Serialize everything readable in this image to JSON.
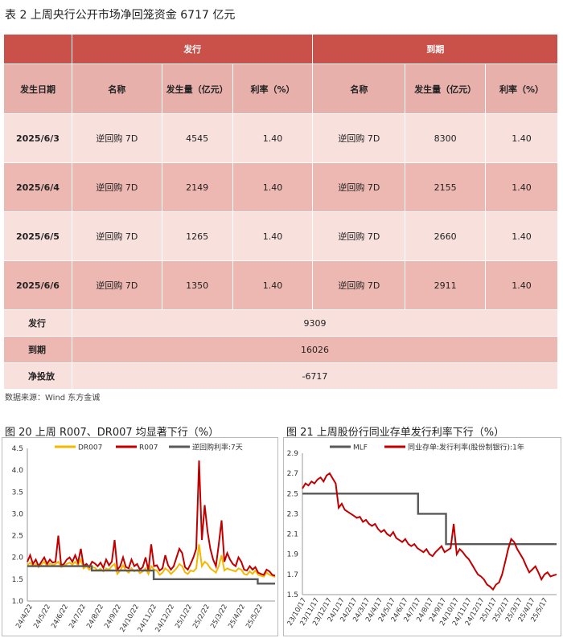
{
  "title": "表 2   上周央行公开市场净回笼资金 6717 亿元",
  "table": {
    "group_headers": [
      "发行",
      "到期"
    ],
    "col_headers": [
      "发生日期",
      "名称",
      "发生量（亿元）",
      "利率（%）",
      "名称",
      "发生量（亿元）",
      "利率（%）"
    ],
    "rows": [
      {
        "date": "2025/6/3",
        "issue_name": "逆回购 7D",
        "issue_amt": "4545",
        "issue_rate": "1.40",
        "mat_name": "逆回购 7D",
        "mat_amt": "8300",
        "mat_rate": "1.40"
      },
      {
        "date": "2025/6/4",
        "issue_name": "逆回购 7D",
        "issue_amt": "2149",
        "issue_rate": "1.40",
        "mat_name": "逆回购 7D",
        "mat_amt": "2155",
        "mat_rate": "1.40"
      },
      {
        "date": "2025/6/5",
        "issue_name": "逆回购 7D",
        "issue_amt": "1265",
        "issue_rate": "1.40",
        "mat_name": "逆回购 7D",
        "mat_amt": "2660",
        "mat_rate": "1.40"
      },
      {
        "date": "2025/6/6",
        "issue_name": "逆回购 7D",
        "issue_amt": "1350",
        "issue_rate": "1.40",
        "mat_name": "逆回购 7D",
        "mat_amt": "2911",
        "mat_rate": "1.40"
      }
    ],
    "summary": [
      {
        "label": "发行",
        "value": "9309"
      },
      {
        "label": "到期",
        "value": "16026"
      },
      {
        "label": "净投放",
        "value": "-6717"
      }
    ]
  },
  "source": "数据来源：Wind 东方金诚",
  "chart_data": [
    {
      "type": "line",
      "title": "图 20  上周 R007、DR007 均显著下行（%）",
      "ylim": [
        1.0,
        4.5
      ],
      "yticks": [
        "4.5",
        "4.0",
        "3.5",
        "3.0",
        "2.5",
        "2.0",
        "1.5",
        "1.0"
      ],
      "x_ticks": [
        "24/4/22",
        "24/5/22",
        "24/6/22",
        "24/7/22",
        "24/8/22",
        "24/9/22",
        "24/10/22",
        "24/11/22",
        "24/12/22",
        "25/1/22",
        "25/2/22",
        "25/3/22",
        "25/4/22",
        "25/5/22"
      ],
      "series": [
        {
          "name": "DR007",
          "color": "#f5b800",
          "values": [
            1.82,
            1.88,
            1.8,
            1.85,
            1.78,
            1.84,
            1.9,
            1.8,
            1.86,
            1.82,
            1.85,
            1.9,
            1.78,
            1.8,
            1.85,
            1.88,
            1.83,
            1.9,
            1.82,
            1.95,
            1.75,
            1.8,
            1.72,
            1.78,
            1.76,
            1.7,
            1.74,
            1.68,
            1.75,
            1.72,
            1.8,
            1.85,
            1.62,
            1.7,
            1.82,
            1.7,
            1.65,
            1.75,
            1.68,
            1.72,
            1.64,
            1.68,
            1.75,
            1.62,
            1.8,
            1.72,
            1.7,
            1.6,
            1.65,
            1.75,
            1.7,
            1.62,
            1.68,
            1.75,
            1.85,
            1.8,
            1.66,
            1.62,
            1.7,
            1.68,
            1.75,
            2.3,
            1.8,
            1.9,
            1.85,
            1.75,
            1.7,
            1.65,
            1.8,
            2.05,
            1.7,
            1.75,
            1.72,
            1.7,
            1.68,
            1.75,
            1.72,
            1.62,
            1.6,
            1.68,
            1.62,
            1.7,
            1.6,
            1.58,
            1.56,
            1.65,
            1.6,
            1.58,
            1.55
          ]
        },
        {
          "name": "R007",
          "color": "#c00000",
          "values": [
            1.9,
            2.05,
            1.85,
            1.95,
            1.8,
            1.9,
            2.0,
            1.85,
            1.95,
            1.88,
            1.9,
            2.5,
            1.82,
            1.85,
            1.95,
            2.0,
            1.9,
            2.05,
            1.88,
            2.2,
            1.8,
            1.85,
            1.78,
            1.9,
            1.86,
            1.8,
            1.88,
            1.76,
            1.95,
            1.82,
            1.9,
            2.4,
            1.72,
            1.8,
            2.0,
            1.78,
            1.75,
            1.95,
            1.8,
            1.85,
            1.72,
            1.78,
            2.0,
            1.7,
            2.3,
            1.8,
            1.82,
            1.7,
            1.75,
            2.05,
            1.82,
            1.72,
            1.8,
            2.0,
            2.2,
            2.1,
            1.78,
            1.72,
            1.85,
            2.0,
            2.2,
            4.22,
            2.4,
            3.2,
            2.6,
            2.2,
            1.95,
            1.8,
            2.3,
            2.85,
            1.9,
            2.1,
            1.95,
            1.85,
            1.8,
            2.0,
            1.9,
            1.72,
            1.7,
            1.8,
            1.72,
            1.78,
            1.65,
            1.62,
            1.6,
            1.72,
            1.68,
            1.6,
            1.58
          ]
        },
        {
          "name": "逆回购利率:7天",
          "color": "#595959",
          "step": [
            [
              0,
              1.8
            ],
            [
              0.26,
              1.7
            ],
            [
              0.51,
              1.5
            ],
            [
              0.93,
              1.4
            ],
            [
              1,
              1.4
            ]
          ]
        }
      ]
    },
    {
      "type": "line",
      "title": "图 21 上周股份行同业存单发行利率下行（%）",
      "ylim": [
        1.5,
        2.9
      ],
      "yticks": [
        "2.9",
        "2.7",
        "2.5",
        "2.3",
        "2.1",
        "1.9",
        "1.7",
        "1.5"
      ],
      "x_ticks": [
        "23/10/17",
        "23/11/17",
        "23/12/17",
        "24/1/17",
        "24/2/17",
        "24/3/17",
        "24/4/17",
        "24/5/17",
        "24/6/17",
        "24/7/17",
        "24/8/17",
        "24/9/17",
        "24/10/17",
        "24/11/17",
        "24/12/17",
        "25/1/17",
        "25/2/17",
        "25/3/17",
        "25/4/17",
        "25/5/17"
      ],
      "series": [
        {
          "name": "MLF",
          "color": "#595959",
          "step": [
            [
              0,
              2.5
            ],
            [
              0.455,
              2.3
            ],
            [
              0.565,
              2.0
            ],
            [
              1,
              2.0
            ]
          ]
        },
        {
          "name": "同业存单:发行利率(股份制银行):1年",
          "color": "#c00000",
          "values": [
            2.55,
            2.6,
            2.58,
            2.62,
            2.6,
            2.64,
            2.66,
            2.62,
            2.68,
            2.7,
            2.65,
            2.6,
            2.36,
            2.4,
            2.34,
            2.32,
            2.3,
            2.28,
            2.26,
            2.27,
            2.22,
            2.24,
            2.2,
            2.18,
            2.2,
            2.15,
            2.12,
            2.14,
            2.1,
            2.08,
            2.12,
            2.06,
            2.04,
            2.02,
            2.05,
            2.0,
            1.98,
            2.0,
            1.96,
            1.94,
            1.92,
            1.95,
            1.9,
            1.88,
            1.92,
            1.95,
            1.98,
            1.92,
            1.94,
            1.96,
            2.2,
            1.9,
            1.95,
            1.92,
            1.88,
            1.85,
            1.8,
            1.75,
            1.7,
            1.68,
            1.65,
            1.6,
            1.58,
            1.55,
            1.6,
            1.62,
            1.7,
            1.82,
            1.95,
            2.05,
            2.02,
            1.95,
            1.9,
            1.85,
            1.78,
            1.72,
            1.75,
            1.78,
            1.72,
            1.65,
            1.7,
            1.72,
            1.68,
            1.69,
            1.7
          ]
        }
      ]
    }
  ]
}
